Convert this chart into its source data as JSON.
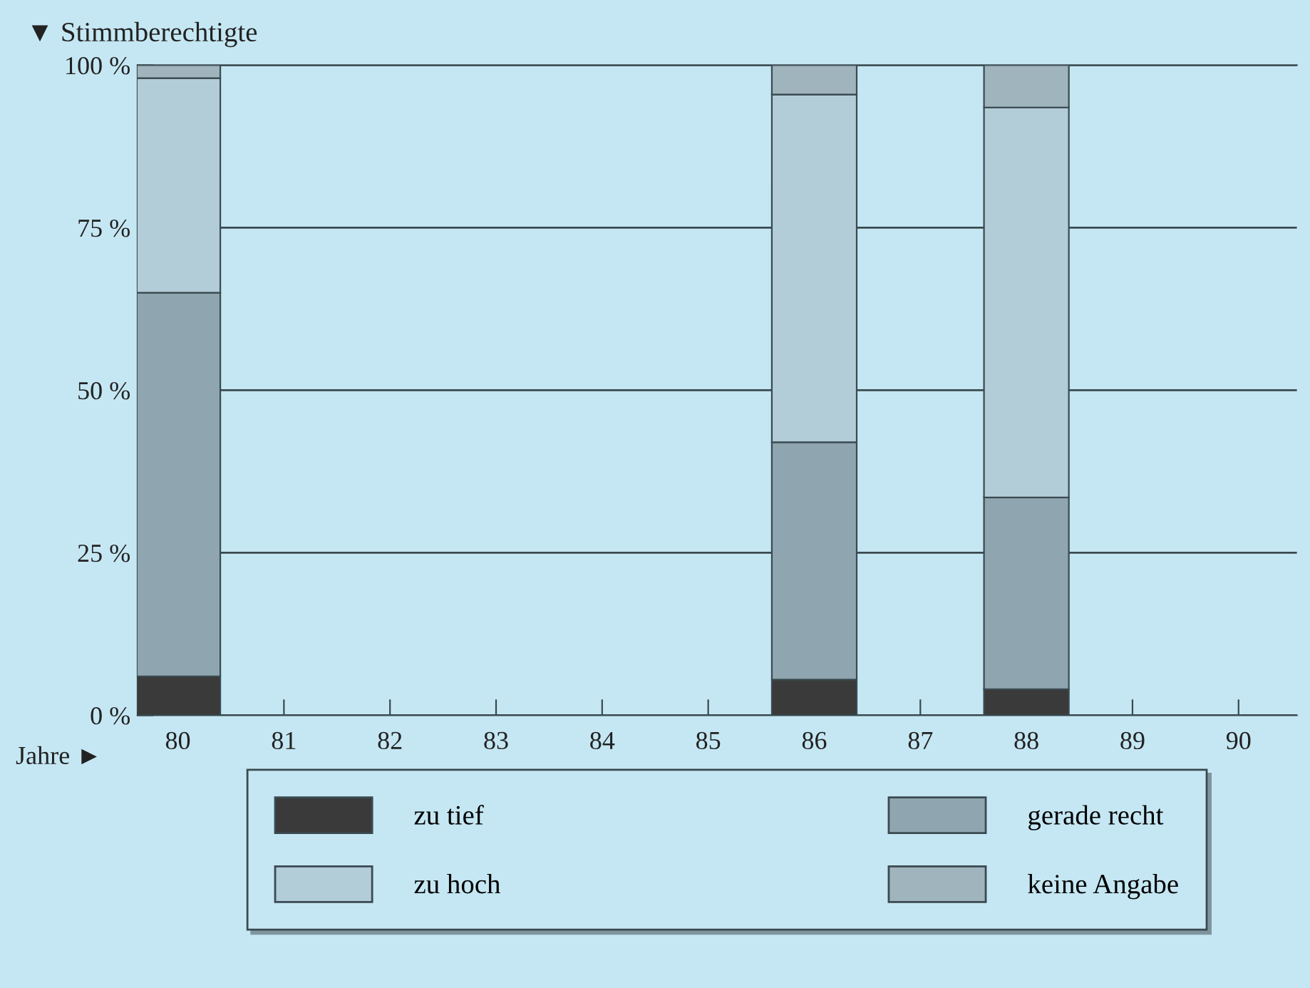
{
  "chart_data": {
    "type": "bar",
    "stacked": true,
    "title": "▼ Stimmberechtigte",
    "xlabel": "Jahre ►",
    "categories": [
      "80",
      "81",
      "82",
      "83",
      "84",
      "85",
      "86",
      "87",
      "88",
      "89",
      "90"
    ],
    "series": [
      {
        "name": "zu tief",
        "color": "#3a3a3a",
        "values": [
          6,
          null,
          null,
          null,
          null,
          null,
          5.5,
          null,
          4,
          null,
          null
        ]
      },
      {
        "name": "gerade recht",
        "color": "#8fa6b0",
        "values": [
          59,
          null,
          null,
          null,
          null,
          null,
          36.5,
          null,
          29.5,
          null,
          null
        ]
      },
      {
        "name": "zu hoch",
        "color": "#b3cdd8",
        "values": [
          33,
          null,
          null,
          null,
          null,
          null,
          53.5,
          null,
          60,
          null,
          null
        ]
      },
      {
        "name": "keine Angabe",
        "color": "#9fb4bd",
        "values": [
          2,
          null,
          null,
          null,
          null,
          null,
          4.5,
          null,
          6.5,
          null,
          null
        ]
      }
    ],
    "ylim": [
      0,
      100
    ],
    "yticks": [
      {
        "value": 0,
        "label": "0 %"
      },
      {
        "value": 25,
        "label": "25 %"
      },
      {
        "value": 50,
        "label": "50 %"
      },
      {
        "value": 75,
        "label": "75 %"
      },
      {
        "value": 100,
        "label": "100 %"
      }
    ],
    "grid": "y",
    "legend": "bottom"
  }
}
